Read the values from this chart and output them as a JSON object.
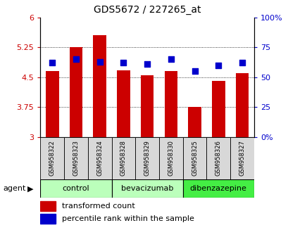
{
  "title": "GDS5672 / 227265_at",
  "samples": [
    "GSM958322",
    "GSM958323",
    "GSM958324",
    "GSM958328",
    "GSM958329",
    "GSM958330",
    "GSM958325",
    "GSM958326",
    "GSM958327"
  ],
  "red_values": [
    4.65,
    5.25,
    5.55,
    4.67,
    4.55,
    4.65,
    3.75,
    4.4,
    4.6
  ],
  "blue_values": [
    62,
    65,
    63,
    62,
    61,
    65,
    55,
    60,
    62
  ],
  "ylim_left": [
    3.0,
    6.0
  ],
  "ylim_right": [
    0,
    100
  ],
  "yticks_left": [
    3.0,
    3.75,
    4.5,
    5.25,
    6.0
  ],
  "ytick_labels_left": [
    "3",
    "3.75",
    "4.5",
    "5.25",
    "6"
  ],
  "yticks_right": [
    0,
    25,
    50,
    75,
    100
  ],
  "ytick_labels_right": [
    "0%",
    "25",
    "50",
    "75",
    "100%"
  ],
  "groups": [
    {
      "label": "control",
      "span": [
        0,
        2
      ],
      "color": "#bbffbb"
    },
    {
      "label": "bevacizumab",
      "span": [
        3,
        5
      ],
      "color": "#bbffbb"
    },
    {
      "label": "dibenzazepine",
      "span": [
        6,
        8
      ],
      "color": "#44ee44"
    }
  ],
  "bar_color": "#cc0000",
  "dot_color": "#0000cc",
  "bar_width": 0.55,
  "dot_size": 30,
  "bg_color": "#ffffff",
  "plot_bg": "#ffffff",
  "tick_label_color_left": "#cc0000",
  "tick_label_color_right": "#0000cc",
  "legend_red": "transformed count",
  "legend_blue": "percentile rank within the sample",
  "agent_label": "agent",
  "figsize": [
    4.1,
    3.54
  ],
  "dpi": 100
}
